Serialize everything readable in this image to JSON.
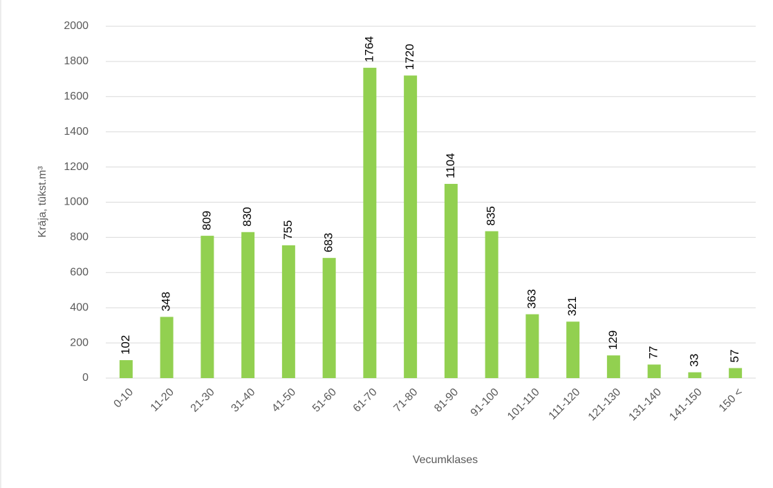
{
  "chart_data": {
    "type": "bar",
    "x_label": "Vecumklases",
    "y_label": "Krāja, tūkst.m³",
    "categories": [
      "0-10",
      "11-20",
      "21-30",
      "31-40",
      "41-50",
      "51-60",
      "61-70",
      "71-80",
      "81-90",
      "91-100",
      "101-110",
      "111-120",
      "121-130",
      "131-140",
      "141-150",
      "150 <"
    ],
    "values": [
      102,
      348,
      809,
      830,
      755,
      683,
      1764,
      1720,
      1104,
      835,
      363,
      321,
      129,
      77,
      33,
      57
    ],
    "color": "#92d050",
    "ylim": [
      0,
      2000
    ],
    "yticks": [
      0,
      200,
      400,
      600,
      800,
      1000,
      1200,
      1400,
      1600,
      1800,
      2000
    ],
    "grid": true
  }
}
